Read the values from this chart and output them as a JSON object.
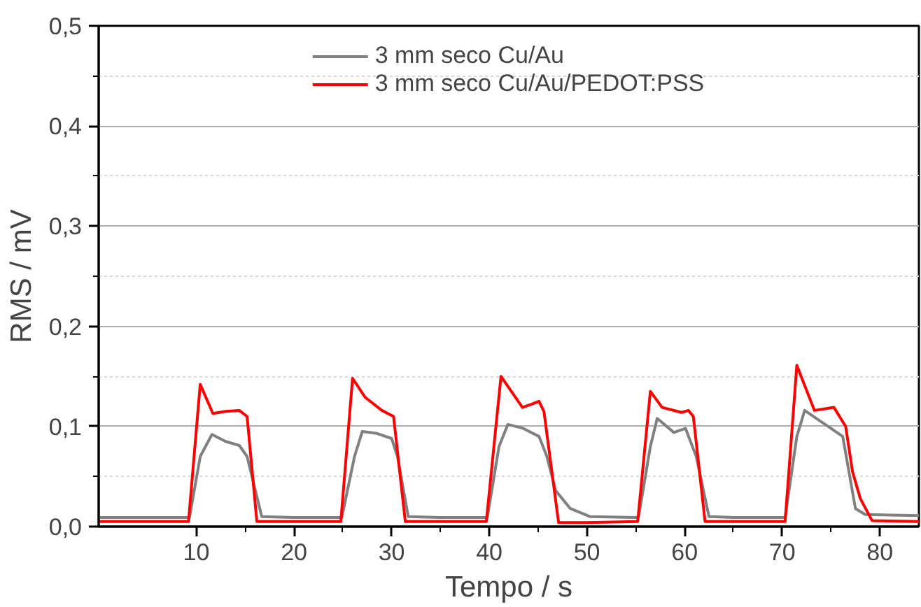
{
  "chart_data": {
    "type": "line",
    "xlabel": "Tempo / s",
    "ylabel": "RMS / mV",
    "xlim": [
      0,
      84
    ],
    "ylim": [
      0,
      0.5
    ],
    "xticks": [
      10,
      20,
      30,
      40,
      50,
      60,
      70,
      80
    ],
    "yticks": [
      {
        "value": 0,
        "label": "0,0"
      },
      {
        "value": 0.1,
        "label": "0,1"
      },
      {
        "value": 0.2,
        "label": "0,2"
      },
      {
        "value": 0.3,
        "label": "0,3"
      },
      {
        "value": 0.4,
        "label": "0,4"
      },
      {
        "value": 0.5,
        "label": "0,5"
      }
    ],
    "grid": "y",
    "legend": "top",
    "line_style": "solid",
    "series": [
      {
        "name": "3 mm seco Cu/Au",
        "color": "#808080",
        "x": [
          0,
          5,
          9.3,
          10.4,
          11.6,
          13,
          14.4,
          15.2,
          16.7,
          20,
          24.9,
          26.2,
          27,
          28.5,
          30,
          30.6,
          31.7,
          35,
          39.8,
          41,
          41.9,
          43.5,
          45.1,
          45.9,
          46.8,
          48.3,
          50.3,
          55,
          55.3,
          56.5,
          57.2,
          58.9,
          60.1,
          61.2,
          62.5,
          65,
          70.3,
          71.5,
          72.3,
          73.5,
          75,
          76.2,
          77.5,
          78.5,
          84
        ],
        "values": [
          0.009,
          0.009,
          0.009,
          0.07,
          0.092,
          0.085,
          0.081,
          0.07,
          0.01,
          0.009,
          0.009,
          0.07,
          0.095,
          0.093,
          0.088,
          0.07,
          0.01,
          0.009,
          0.009,
          0.08,
          0.102,
          0.098,
          0.09,
          0.07,
          0.036,
          0.018,
          0.01,
          0.009,
          0.01,
          0.08,
          0.108,
          0.094,
          0.098,
          0.07,
          0.01,
          0.009,
          0.009,
          0.09,
          0.116,
          0.108,
          0.098,
          0.09,
          0.018,
          0.012,
          0.011
        ]
      },
      {
        "name": "3 mm seco Cu/Au/PEDOT:PSS",
        "color": "#ff0000",
        "x": [
          0,
          5,
          9.2,
          10.4,
          11.7,
          13,
          14.4,
          15.2,
          16.2,
          20,
          24.8,
          26,
          27.3,
          29,
          30.2,
          31.4,
          35,
          39.7,
          41.2,
          43.4,
          45.1,
          45.6,
          47.1,
          50,
          55.2,
          56.5,
          57.7,
          59.7,
          60.4,
          60.9,
          62.1,
          65,
          70.3,
          71.5,
          73.3,
          75.3,
          76.5,
          77.2,
          78,
          79.2,
          84
        ],
        "values": [
          0.005,
          0.005,
          0.005,
          0.142,
          0.113,
          0.115,
          0.116,
          0.11,
          0.005,
          0.005,
          0.005,
          0.148,
          0.129,
          0.116,
          0.11,
          0.005,
          0.005,
          0.005,
          0.15,
          0.119,
          0.125,
          0.115,
          0.004,
          0.004,
          0.005,
          0.135,
          0.119,
          0.114,
          0.116,
          0.11,
          0.005,
          0.005,
          0.005,
          0.161,
          0.116,
          0.119,
          0.1,
          0.055,
          0.028,
          0.006,
          0.005
        ]
      }
    ]
  }
}
